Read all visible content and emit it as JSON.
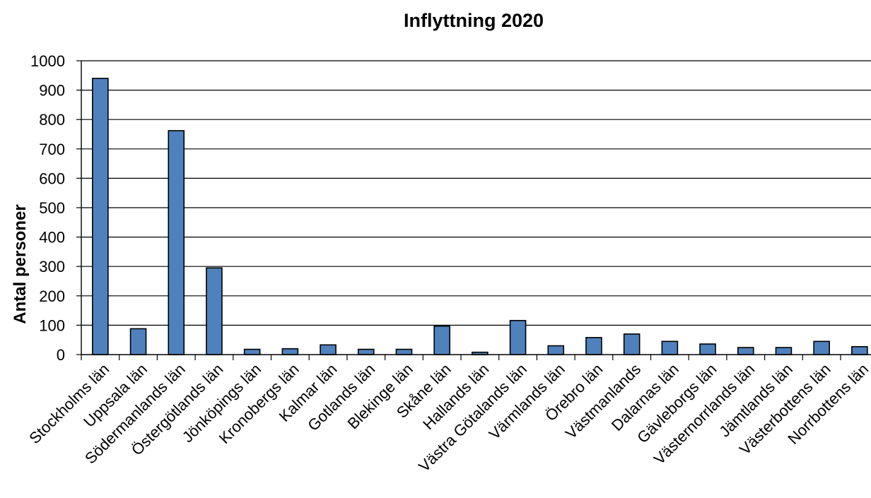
{
  "chart_data": {
    "type": "bar",
    "title": "Inflyttning 2020",
    "xlabel": "",
    "ylabel": "Antal personer",
    "ylim": [
      0,
      1000
    ],
    "yticks": [
      0,
      100,
      200,
      300,
      400,
      500,
      600,
      700,
      800,
      900,
      1000
    ],
    "grid": true,
    "legend": "none",
    "bar_color": "#4f81bd",
    "categories": [
      "Stockholms län",
      "Uppsala län",
      "Södermanlands län",
      "Östergötlands län",
      "Jönköpings län",
      "Kronobergs län",
      "Kalmar län",
      "Gotlands län",
      "Blekinge län",
      "Skåne län",
      "Hallands län",
      "Västra Götalands län",
      "Värmlands län",
      "Örebro län",
      "Västmanlands",
      "Dalarnas län",
      "Gävleborgs län",
      "Västernorrlands län",
      "Jämtlands län",
      "Västerbottens län",
      "Norrbottens län"
    ],
    "values": [
      940,
      88,
      762,
      295,
      18,
      20,
      33,
      18,
      18,
      97,
      8,
      116,
      30,
      58,
      70,
      45,
      36,
      24,
      24,
      45,
      27
    ]
  }
}
